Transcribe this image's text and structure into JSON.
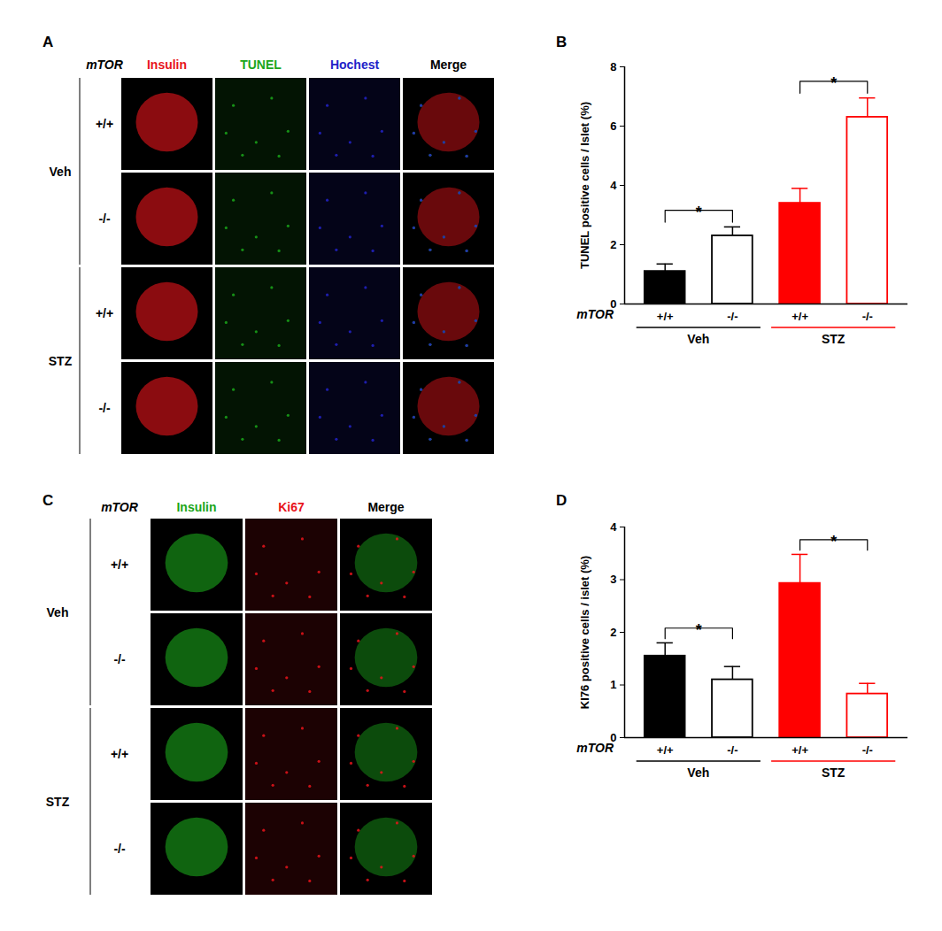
{
  "image_panels": [
    {
      "panel": "A",
      "row_header": "mTOR",
      "columns": [
        {
          "label": "Insulin",
          "color": "#e8141b"
        },
        {
          "label": "TUNEL",
          "color": "#1aa61a"
        },
        {
          "label": "Hochest",
          "color": "#2323c8"
        },
        {
          "label": "Merge",
          "color": "#000000"
        }
      ],
      "groups": [
        {
          "label": "Veh",
          "rows": [
            "+/+",
            "-/-"
          ]
        },
        {
          "label": "STZ",
          "rows": [
            "+/+",
            "-/-"
          ]
        }
      ]
    },
    {
      "panel": "C",
      "row_header": "mTOR",
      "columns": [
        {
          "label": "Insulin",
          "color": "#1aa61a"
        },
        {
          "label": "Ki67",
          "color": "#e8141b"
        },
        {
          "label": "Merge",
          "color": "#000000"
        }
      ],
      "groups": [
        {
          "label": "Veh",
          "rows": [
            "+/+",
            "-/-"
          ]
        },
        {
          "label": "STZ",
          "rows": [
            "+/+",
            "-/-"
          ]
        }
      ]
    }
  ],
  "chart_data": [
    {
      "panel": "B",
      "type": "bar",
      "categories": [
        "+/+",
        "-/-",
        "+/+",
        "-/-"
      ],
      "x_groups": [
        "Veh",
        "Veh",
        "STZ",
        "STZ"
      ],
      "x_label": "mTOR",
      "y_label": "TUNEL positive cells / Islet (%)",
      "values": [
        1.1,
        2.3,
        3.4,
        6.3
      ],
      "errors": [
        0.25,
        0.3,
        0.5,
        0.65
      ],
      "colors": [
        "#000000",
        "#000000",
        "#ff0000",
        "#ff0000"
      ],
      "ylim": [
        0,
        8
      ],
      "yticks": [
        0,
        2,
        4,
        6,
        8
      ],
      "significance": [
        {
          "from": 0,
          "to": 1,
          "label": "*"
        },
        {
          "from": 2,
          "to": 3,
          "label": "*"
        }
      ]
    },
    {
      "panel": "D",
      "type": "bar",
      "categories": [
        "+/+",
        "-/-",
        "+/+",
        "-/-"
      ],
      "x_groups": [
        "Veh",
        "Veh",
        "STZ",
        "STZ"
      ],
      "x_label": "mTOR",
      "y_label": "KI76 positive cells / islet (%)",
      "values": [
        1.55,
        1.1,
        2.93,
        0.83
      ],
      "errors": [
        0.25,
        0.25,
        0.55,
        0.2
      ],
      "colors": [
        "#000000",
        "#000000",
        "#ff0000",
        "#ff0000"
      ],
      "ylim": [
        0,
        4
      ],
      "yticks": [
        0,
        1,
        2,
        3,
        4
      ],
      "significance": [
        {
          "from": 0,
          "to": 1,
          "label": "*"
        },
        {
          "from": 2,
          "to": 3,
          "label": "*"
        }
      ]
    }
  ]
}
